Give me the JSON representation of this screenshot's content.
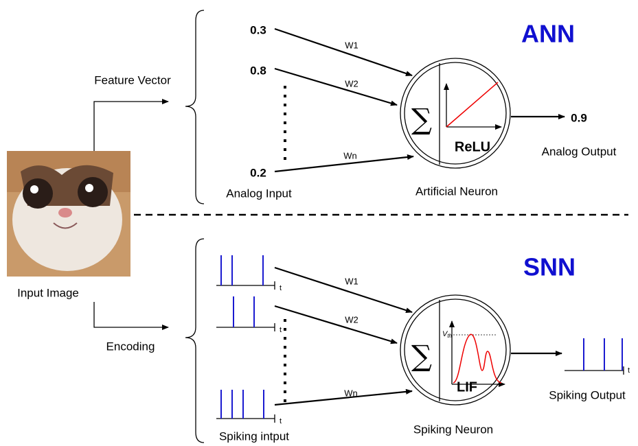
{
  "input": {
    "label": "Input Image"
  },
  "ann": {
    "title": "ANN",
    "branch_label": "Feature Vector",
    "inputs": [
      0.3,
      0.8,
      0.2
    ],
    "weights": [
      "W1",
      "W2",
      "Wn"
    ],
    "input_label": "Analog Input",
    "neuron": {
      "symbol": "∑",
      "activation": "ReLU",
      "label": "Artificial Neuron"
    },
    "output": 0.9,
    "output_label": "Analog Output"
  },
  "snn": {
    "title": "SNN",
    "branch_label": "Encoding",
    "weights": [
      "W1",
      "W2",
      "Wn"
    ],
    "input_label": "Spiking intput",
    "time_label": "t",
    "neuron": {
      "symbol": "∑",
      "activation": "LIF",
      "threshold": {
        "symbol": "V",
        "subscript": "th"
      },
      "label": "Spiking Neuron"
    },
    "output_label": "Spiking Output"
  }
}
